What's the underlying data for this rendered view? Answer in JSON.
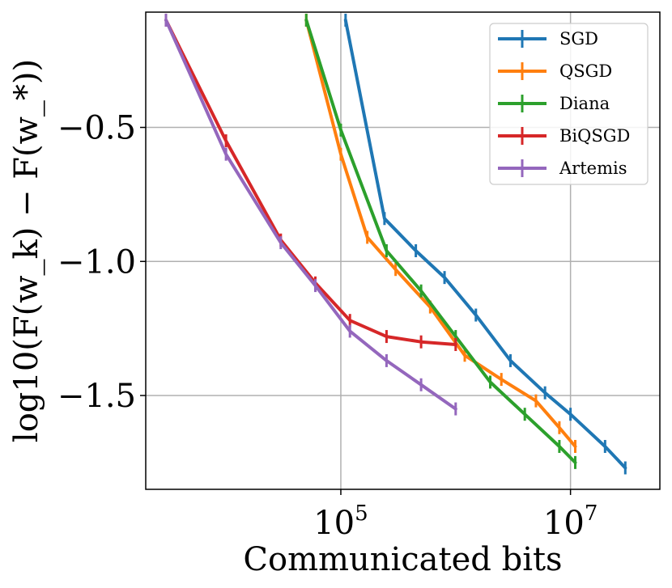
{
  "chart_data": {
    "type": "line",
    "title": "",
    "xlabel": "Communicated bits",
    "ylabel": "log10(F(w_k) − F(w_*))",
    "xscale": "log",
    "xlim": [
      2000,
      60000000
    ],
    "ylim": [
      -1.85,
      -0.07
    ],
    "grid": true,
    "legend_position": "top-right",
    "x_ticks": [
      {
        "value": 100000,
        "base": "10",
        "exp": "5"
      },
      {
        "value": 10000000,
        "base": "10",
        "exp": "7"
      }
    ],
    "y_ticks": [
      {
        "value": -0.5,
        "label": "−0.5"
      },
      {
        "value": -1.0,
        "label": "−1.0"
      },
      {
        "value": -1.5,
        "label": "−1.5"
      }
    ],
    "series": [
      {
        "name": "SGD",
        "color": "#1f77b4",
        "x": [
          110000,
          240000,
          450000,
          800000,
          1500000,
          3000000,
          6000000,
          10000000,
          20000000,
          30000000
        ],
        "y": [
          -0.1,
          -0.84,
          -0.96,
          -1.06,
          -1.2,
          -1.37,
          -1.49,
          -1.57,
          -1.69,
          -1.77
        ]
      },
      {
        "name": "QSGD",
        "color": "#ff7f0e",
        "x": [
          50000,
          100000,
          170000,
          300000,
          600000,
          1200000,
          2500000,
          5000000,
          8000000,
          11000000
        ],
        "y": [
          -0.1,
          -0.6,
          -0.91,
          -1.03,
          -1.17,
          -1.35,
          -1.44,
          -1.52,
          -1.62,
          -1.69
        ]
      },
      {
        "name": "Diana",
        "color": "#2ca02c",
        "x": [
          50000,
          100000,
          250000,
          500000,
          1000000,
          2000000,
          4000000,
          8000000,
          11000000
        ],
        "y": [
          -0.1,
          -0.51,
          -0.96,
          -1.11,
          -1.28,
          -1.45,
          -1.57,
          -1.69,
          -1.75
        ]
      },
      {
        "name": "BiQSGD",
        "color": "#d62728",
        "x": [
          3000,
          10000,
          30000,
          60000,
          120000,
          250000,
          500000,
          1000000
        ],
        "y": [
          -0.1,
          -0.55,
          -0.92,
          -1.08,
          -1.22,
          -1.28,
          -1.3,
          -1.31
        ]
      },
      {
        "name": "Artemis",
        "color": "#9467bd",
        "x": [
          3000,
          10000,
          30000,
          60000,
          120000,
          250000,
          500000,
          1000000
        ],
        "y": [
          -0.1,
          -0.6,
          -0.93,
          -1.09,
          -1.26,
          -1.37,
          -1.46,
          -1.55
        ]
      }
    ]
  }
}
